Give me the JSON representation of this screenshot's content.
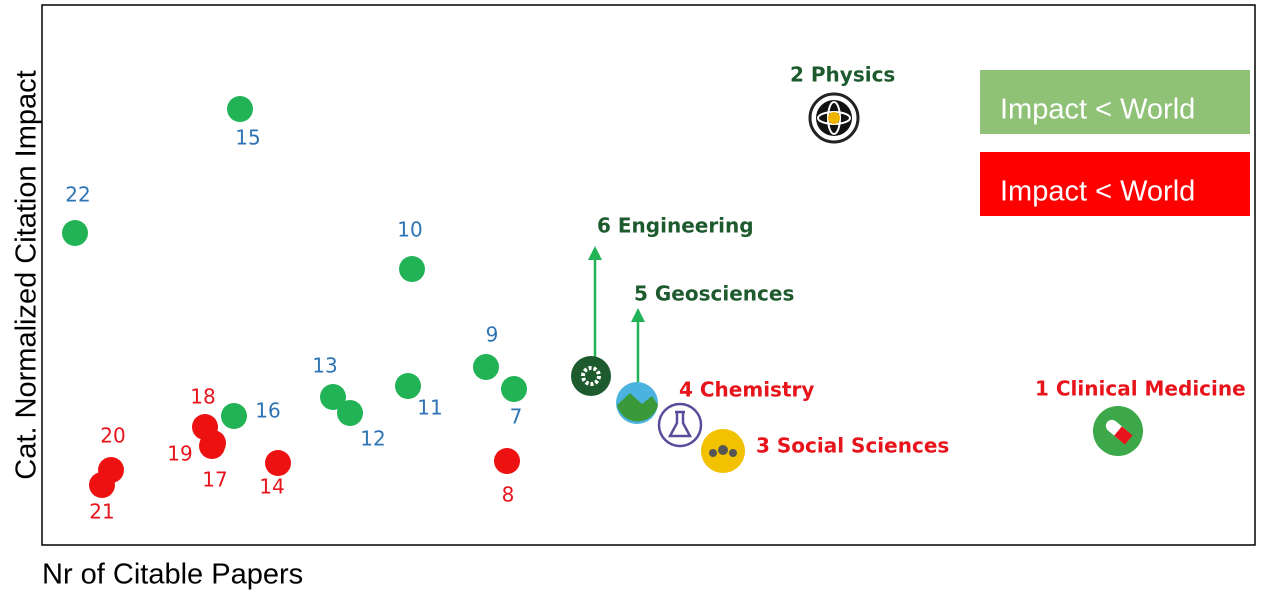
{
  "axes": {
    "x_label": "Nr of Citable Papers",
    "y_label": "Cat. Normalized Citation Impact"
  },
  "legend": [
    {
      "label": "Impact < World",
      "color": "#8fc177"
    },
    {
      "label": "Impact < World",
      "color": "#ff0000"
    }
  ],
  "points": [
    {
      "label": "15",
      "color": "#22b357"
    },
    {
      "label": "22",
      "color": "#22b357"
    },
    {
      "label": "10",
      "color": "#22b357"
    },
    {
      "label": "9",
      "color": "#22b357"
    },
    {
      "label": "7",
      "color": "#22b357"
    },
    {
      "label": "13",
      "color": "#22b357"
    },
    {
      "label": "12",
      "color": "#22b357"
    },
    {
      "label": "11",
      "color": "#22b357"
    },
    {
      "label": "16",
      "color": "#22b357"
    },
    {
      "label": "18",
      "color": "#ee1111"
    },
    {
      "label": "19",
      "color": "#ee1111"
    },
    {
      "label": "17",
      "color": "#ee1111"
    },
    {
      "label": "14",
      "color": "#ee1111"
    },
    {
      "label": "20",
      "color": "#ee1111"
    },
    {
      "label": "21",
      "color": "#ee1111"
    },
    {
      "label": "8",
      "color": "#ee1111"
    }
  ],
  "fields": [
    {
      "label": "2 Physics",
      "color": "#1d5a2e"
    },
    {
      "label": "6 Engineering",
      "color": "#1d5a2e"
    },
    {
      "label": "5 Geosciences",
      "color": "#1d5a2e"
    },
    {
      "label": "4 Chemistry",
      "color": "#e8141c"
    },
    {
      "label": "3 Social Sciences",
      "color": "#e8141c"
    },
    {
      "label": "1 Clinical Medicine",
      "color": "#e8141c"
    }
  ]
}
